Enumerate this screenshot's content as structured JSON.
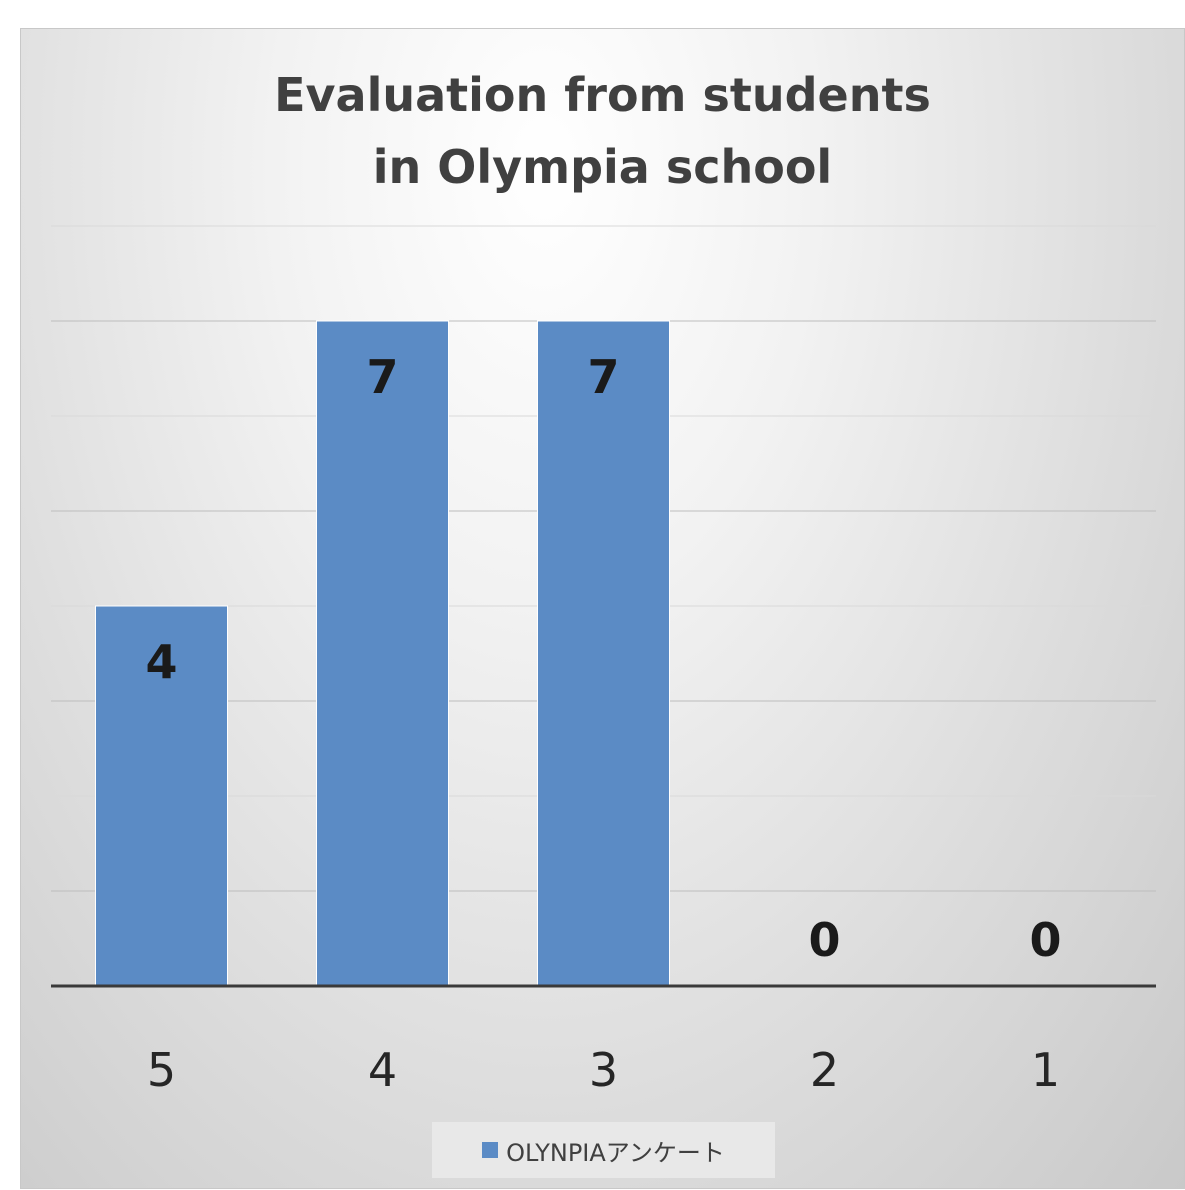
{
  "chart_data": {
    "type": "bar",
    "title_lines": [
      "Evaluation from students",
      "in Olympia school"
    ],
    "categories": [
      "5",
      "4",
      "3",
      "2",
      "1"
    ],
    "series": [
      {
        "name": "OLYNPIAアンケート",
        "values": [
          4,
          7,
          7,
          0,
          0
        ],
        "color": "#5b8bc5"
      }
    ],
    "ylim": [
      0,
      8
    ],
    "y_axis_labels_shown": false,
    "grid": true,
    "data_labels": true,
    "legend_position": "bottom"
  }
}
